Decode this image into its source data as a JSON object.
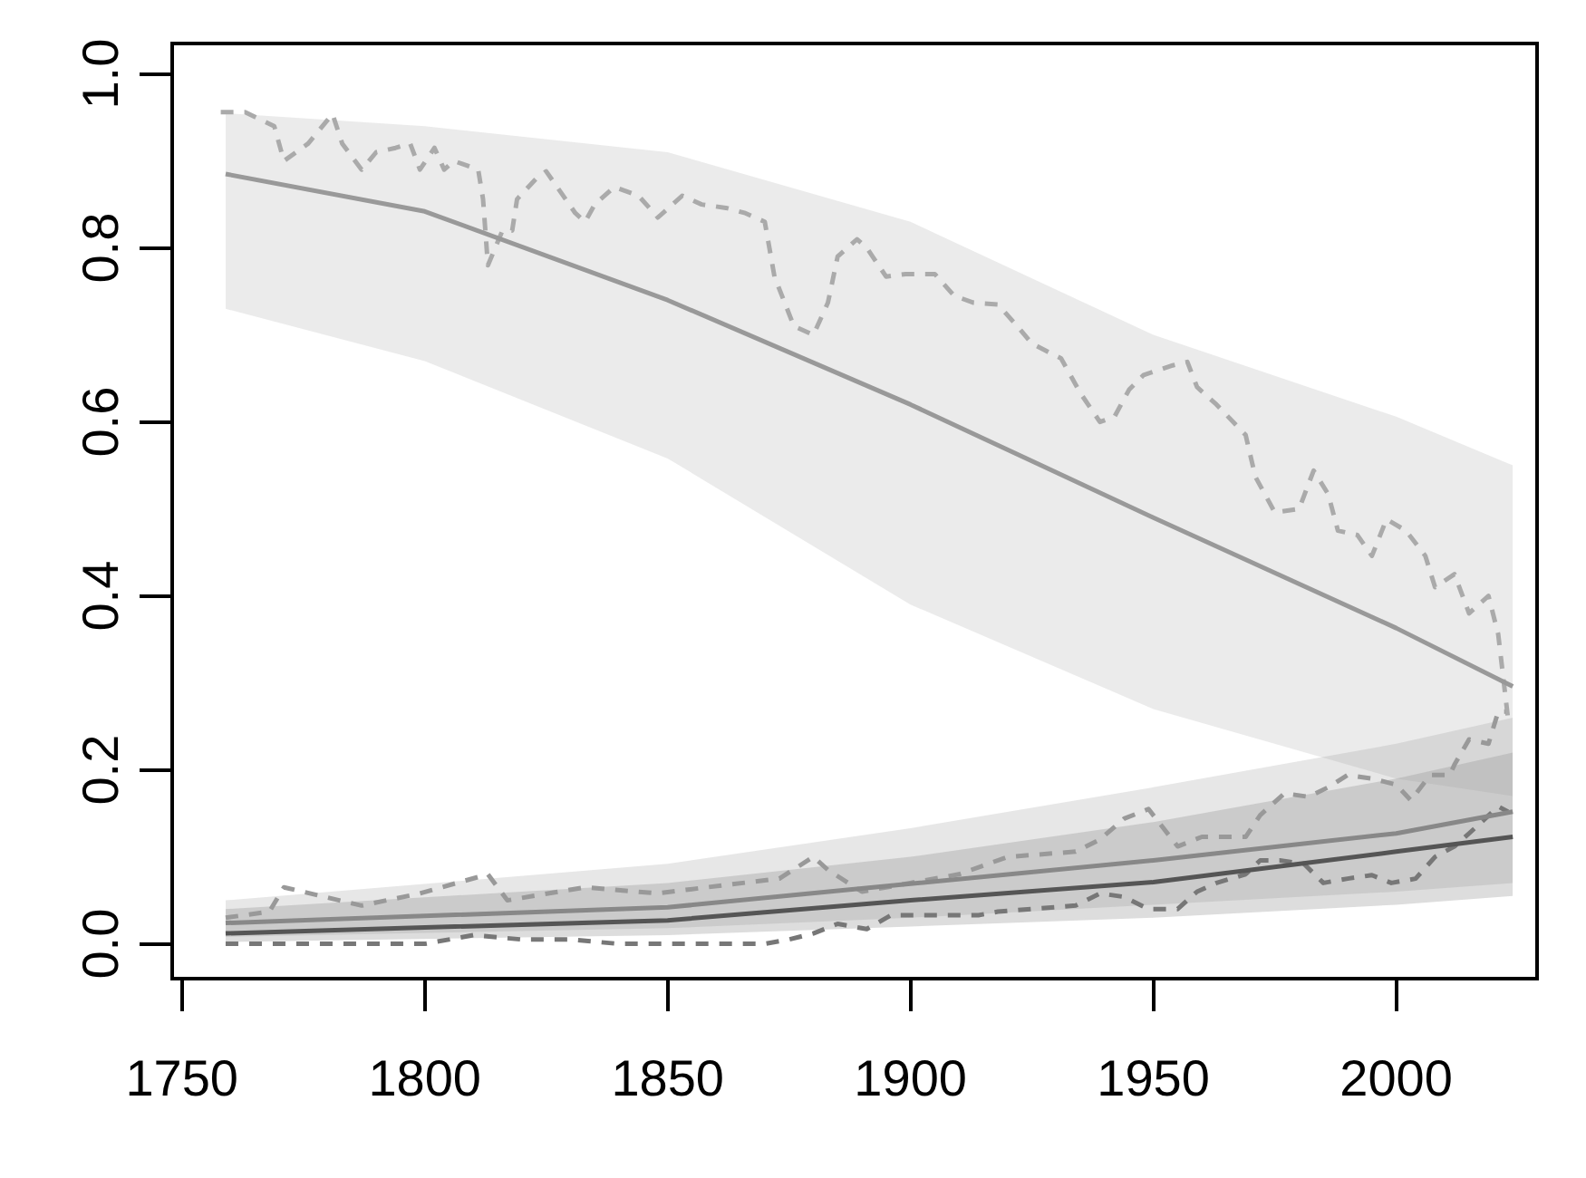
{
  "chart_data": {
    "type": "line",
    "xlim": [
      1748,
      2029
    ],
    "ylim": [
      -0.04,
      1.035
    ],
    "xticks": [
      1750,
      1800,
      1850,
      1900,
      1950,
      2000
    ],
    "yticks": [
      {
        "value": 0,
        "label": "0.0"
      },
      {
        "value": 0.2,
        "label": "0.2"
      },
      {
        "value": 0.4,
        "label": "0.4"
      },
      {
        "value": 0.6,
        "label": "0.6"
      },
      {
        "value": 0.8,
        "label": "0.8"
      },
      {
        "value": 1,
        "label": "1.0"
      }
    ],
    "grid": false,
    "legend": false,
    "marker": "none",
    "series": [
      {
        "color": "#999999",
        "line_style": "solid",
        "x": [
          1759,
          1800,
          1850,
          1900,
          1950,
          2000,
          2024
        ],
        "values": [
          0.885,
          0.842,
          0.74,
          0.62,
          0.49,
          0.363,
          0.296
        ],
        "lower": [
          0.73,
          0.67,
          0.558,
          0.39,
          0.27,
          0.19,
          0.17
        ],
        "upper": [
          0.955,
          0.94,
          0.91,
          0.83,
          0.7,
          0.606,
          0.55
        ]
      },
      {
        "color": "#888888",
        "line_style": "solid",
        "x": [
          1759,
          1850,
          1900,
          1950,
          2000,
          2024
        ],
        "values": [
          0.024,
          0.042,
          0.069,
          0.096,
          0.127,
          0.152
        ],
        "lower": [
          0.008,
          0.018,
          0.03,
          0.045,
          0.06,
          0.07
        ],
        "upper": [
          0.05,
          0.092,
          0.133,
          0.18,
          0.23,
          0.26
        ]
      },
      {
        "color": "#555555",
        "line_style": "solid",
        "x": [
          1759,
          1850,
          1900,
          1950,
          2000,
          2024
        ],
        "values": [
          0.012,
          0.027,
          0.05,
          0.071,
          0.106,
          0.123
        ],
        "lower": [
          0.002,
          0.01,
          0.02,
          0.03,
          0.045,
          0.055
        ],
        "upper": [
          0.04,
          0.07,
          0.1,
          0.14,
          0.19,
          0.22
        ]
      },
      {
        "color": "#aaaaaa",
        "line_style": "dashed",
        "x": [
          1758,
          1763,
          1769,
          1771,
          1776,
          1781,
          1783,
          1787,
          1790,
          1794,
          1797,
          1799,
          1802,
          1804,
          1806,
          1811,
          1812,
          1813,
          1816,
          1818,
          1819,
          1823,
          1825,
          1831,
          1833,
          1835,
          1839,
          1844,
          1848,
          1853,
          1857,
          1862,
          1866,
          1870,
          1872,
          1876,
          1880,
          1883,
          1885,
          1887,
          1889,
          1891,
          1895,
          1899,
          1905,
          1909,
          1913,
          1918,
          1922,
          1925,
          1931,
          1935,
          1939,
          1942,
          1945,
          1948,
          1954,
          1957,
          1959,
          1963,
          1969,
          1971,
          1975,
          1980,
          1983,
          1986,
          1988,
          1992,
          1995,
          1998,
          2002,
          2006,
          2008,
          2012,
          2015,
          2019,
          2021,
          2023
        ],
        "values": [
          0.956,
          0.956,
          0.94,
          0.9,
          0.92,
          0.954,
          0.92,
          0.89,
          0.91,
          0.915,
          0.92,
          0.89,
          0.915,
          0.89,
          0.9,
          0.89,
          0.856,
          0.78,
          0.82,
          0.82,
          0.856,
          0.88,
          0.888,
          0.84,
          0.83,
          0.85,
          0.87,
          0.86,
          0.835,
          0.86,
          0.85,
          0.846,
          0.84,
          0.83,
          0.767,
          0.71,
          0.7,
          0.737,
          0.79,
          0.8,
          0.81,
          0.8,
          0.767,
          0.77,
          0.77,
          0.745,
          0.737,
          0.735,
          0.71,
          0.69,
          0.673,
          0.633,
          0.6,
          0.606,
          0.637,
          0.654,
          0.665,
          0.669,
          0.64,
          0.62,
          0.585,
          0.537,
          0.496,
          0.5,
          0.544,
          0.517,
          0.475,
          0.47,
          0.446,
          0.488,
          0.475,
          0.446,
          0.41,
          0.425,
          0.38,
          0.4,
          0.356,
          0.26
        ]
      },
      {
        "color": "#999999",
        "line_style": "dashed",
        "x": [
          1759,
          1768,
          1771,
          1787,
          1799,
          1813,
          1817,
          1833,
          1848,
          1858,
          1873,
          1880,
          1883,
          1890,
          1900,
          1910,
          1920,
          1934,
          1939,
          1944,
          1949,
          1955,
          1960,
          1969,
          1972,
          1977,
          1982,
          1986,
          1990,
          1995,
          2000,
          2003,
          2007,
          2011,
          2012,
          2015,
          2019,
          2021,
          2023
        ],
        "values": [
          0.03,
          0.037,
          0.065,
          0.044,
          0.058,
          0.08,
          0.05,
          0.065,
          0.058,
          0.065,
          0.075,
          0.1,
          0.085,
          0.06,
          0.07,
          0.08,
          0.1,
          0.106,
          0.12,
          0.144,
          0.155,
          0.112,
          0.123,
          0.123,
          0.148,
          0.173,
          0.169,
          0.18,
          0.194,
          0.19,
          0.183,
          0.165,
          0.194,
          0.194,
          0.206,
          0.235,
          0.23,
          0.267,
          0.267
        ]
      },
      {
        "color": "#777777",
        "line_style": "dashed",
        "x": [
          1759,
          1770,
          1780,
          1790,
          1800,
          1810,
          1820,
          1830,
          1840,
          1850,
          1860,
          1870,
          1875,
          1880,
          1885,
          1891,
          1896,
          1903,
          1909,
          1914,
          1918,
          1934,
          1939,
          1944,
          1949,
          1955,
          1959,
          1963,
          1969,
          1972,
          1976,
          1981,
          1985,
          1990,
          1995,
          1999,
          2004,
          2008,
          2012,
          2017,
          2021,
          2023
        ],
        "values": [
          0,
          0,
          0,
          0,
          0,
          0.01,
          0.005,
          0.005,
          0,
          0,
          0,
          0,
          0.005,
          0.012,
          0.023,
          0.017,
          0.033,
          0.033,
          0.033,
          0.033,
          0.037,
          0.044,
          0.058,
          0.054,
          0.04,
          0.04,
          0.06,
          0.07,
          0.08,
          0.096,
          0.096,
          0.092,
          0.07,
          0.075,
          0.079,
          0.07,
          0.075,
          0.1,
          0.112,
          0.137,
          0.158,
          0.152
        ]
      }
    ]
  }
}
